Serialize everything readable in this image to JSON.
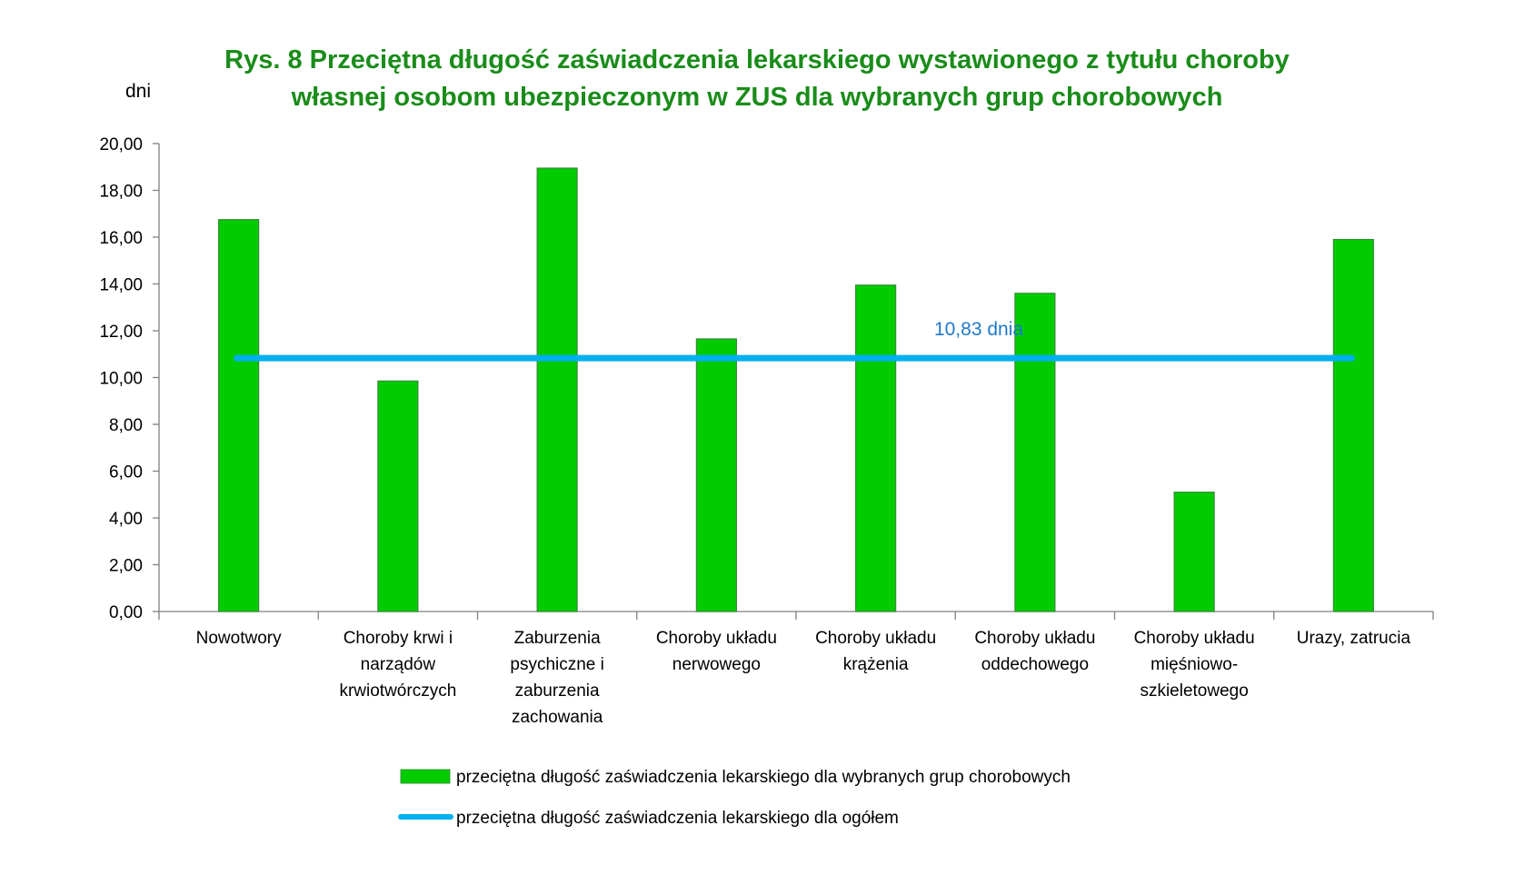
{
  "chart_data": {
    "type": "bar",
    "title": [
      "Rys. 8  Przeciętna długość zaświadczenia lekarskiego wystawionego z tytułu choroby",
      "własnej osobom ubezpieczonym w ZUS dla wybranych grup chorobowych"
    ],
    "ylabel": "dni",
    "ylim": [
      0,
      20
    ],
    "yticks": [
      "0,00",
      "2,00",
      "4,00",
      "6,00",
      "8,00",
      "10,00",
      "12,00",
      "14,00",
      "16,00",
      "18,00",
      "20,00"
    ],
    "categories": [
      [
        "Nowotwory"
      ],
      [
        "Choroby krwi i",
        "narządów",
        "krwiotwórczych"
      ],
      [
        "Zaburzenia",
        "psychiczne i",
        "zaburzenia",
        "zachowania"
      ],
      [
        "Choroby układu",
        "nerwowego"
      ],
      [
        "Choroby układu",
        "krążenia"
      ],
      [
        "Choroby układu",
        "oddechowego"
      ],
      [
        "Choroby układu",
        "mięśniowo-",
        "szkieletowego"
      ],
      [
        "Urazy, zatrucia"
      ]
    ],
    "series": [
      {
        "name": "przeciętna długość zaświadczenia lekarskiego dla wybranych grup chorobowych",
        "type": "bar",
        "color": "#00cc00",
        "values": [
          16.75,
          9.85,
          18.95,
          11.65,
          13.95,
          13.6,
          5.1,
          15.9
        ]
      },
      {
        "name": "przeciętna długość zaświadczenia lekarskiego dla ogółem",
        "type": "line",
        "color": "#00b0f0",
        "value": 10.83
      }
    ],
    "annotation": "10,83 dnia",
    "grid": false,
    "legend_position": "bottom"
  }
}
